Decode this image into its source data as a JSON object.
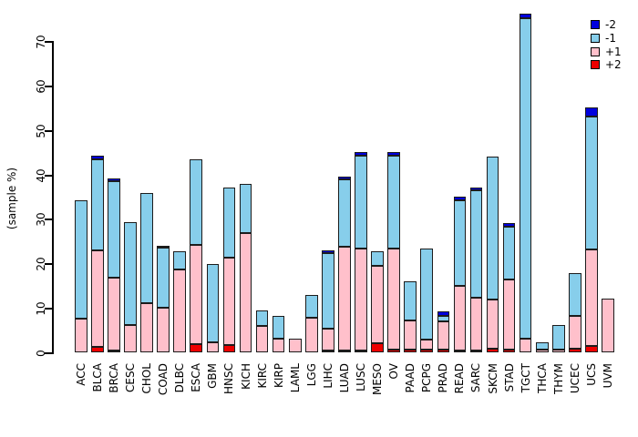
{
  "chart_data": {
    "type": "bar",
    "variant": "stacked-vertical",
    "title": "",
    "xlabel": "",
    "ylabel": "(sample %)",
    "ylim": [
      0,
      70
    ],
    "yticks": [
      0,
      10,
      20,
      30,
      40,
      50,
      60,
      70
    ],
    "grid": false,
    "legend_position": "top-right",
    "categories": [
      "ACC",
      "BLCA",
      "BRCA",
      "CESC",
      "CHOL",
      "COAD",
      "DLBC",
      "ESCA",
      "GBM",
      "HNSC",
      "KICH",
      "KIRC",
      "KIRP",
      "LAML",
      "LGG",
      "LIHC",
      "LUAD",
      "LUSC",
      "MESO",
      "OV",
      "PAAD",
      "PCPG",
      "PRAD",
      "READ",
      "SARC",
      "SKCM",
      "STAD",
      "TGCT",
      "THCA",
      "THYM",
      "UCEC",
      "UCS",
      "UVM"
    ],
    "stack_order_bottom_to_top": [
      "+2",
      "+1",
      "-1",
      "-2"
    ],
    "series": [
      {
        "name": "+2",
        "color": "#ee0000",
        "values": [
          0,
          1.4,
          0.6,
          0,
          0,
          0,
          0,
          2.0,
          0,
          1.8,
          0,
          0,
          0,
          0,
          0,
          0.4,
          0.5,
          0.4,
          2.2,
          0.8,
          0.8,
          0.7,
          0.7,
          0.4,
          0.5,
          0.9,
          0.7,
          0,
          0,
          0,
          0.9,
          1.6,
          0
        ]
      },
      {
        "name": "+1",
        "color": "#ffc0cb",
        "values": [
          7.7,
          21.7,
          16.3,
          6.3,
          11.1,
          10.2,
          18.8,
          22.4,
          2.4,
          19.6,
          27.0,
          6.1,
          3.1,
          3.2,
          7.8,
          5.1,
          23.4,
          23.0,
          17.3,
          22.6,
          6.5,
          2.2,
          6.4,
          14.6,
          11.9,
          11.2,
          15.9,
          3.1,
          0.8,
          0.7,
          7.4,
          21.6,
          12.3
        ]
      },
      {
        "name": "-1",
        "color": "#87ceeb",
        "values": [
          26.7,
          20.6,
          21.7,
          23.1,
          25.0,
          13.4,
          4.1,
          19.2,
          17.6,
          15.9,
          11.0,
          3.4,
          5.2,
          0,
          5.3,
          17.0,
          15.2,
          21.0,
          3.4,
          21.1,
          8.9,
          20.5,
          1.2,
          19.4,
          24.2,
          32.2,
          11.8,
          72.3,
          1.6,
          5.6,
          9.6,
          30.0,
          0
        ]
      },
      {
        "name": "-2",
        "color": "#0000dd",
        "values": [
          0,
          0.8,
          0.7,
          0,
          0,
          0.6,
          0,
          0,
          0,
          0,
          0,
          0,
          0,
          0,
          0,
          0.6,
          0.7,
          0.8,
          0,
          0.7,
          0,
          0,
          1.0,
          0.8,
          0.7,
          0,
          0.8,
          1.0,
          0,
          0,
          0,
          2.2,
          0
        ]
      }
    ],
    "legend": [
      {
        "label": "-2",
        "color": "#0000dd"
      },
      {
        "label": "-1",
        "color": "#87ceeb"
      },
      {
        "label": "+1",
        "color": "#ffc0cb"
      },
      {
        "label": "+2",
        "color": "#ee0000"
      }
    ]
  }
}
